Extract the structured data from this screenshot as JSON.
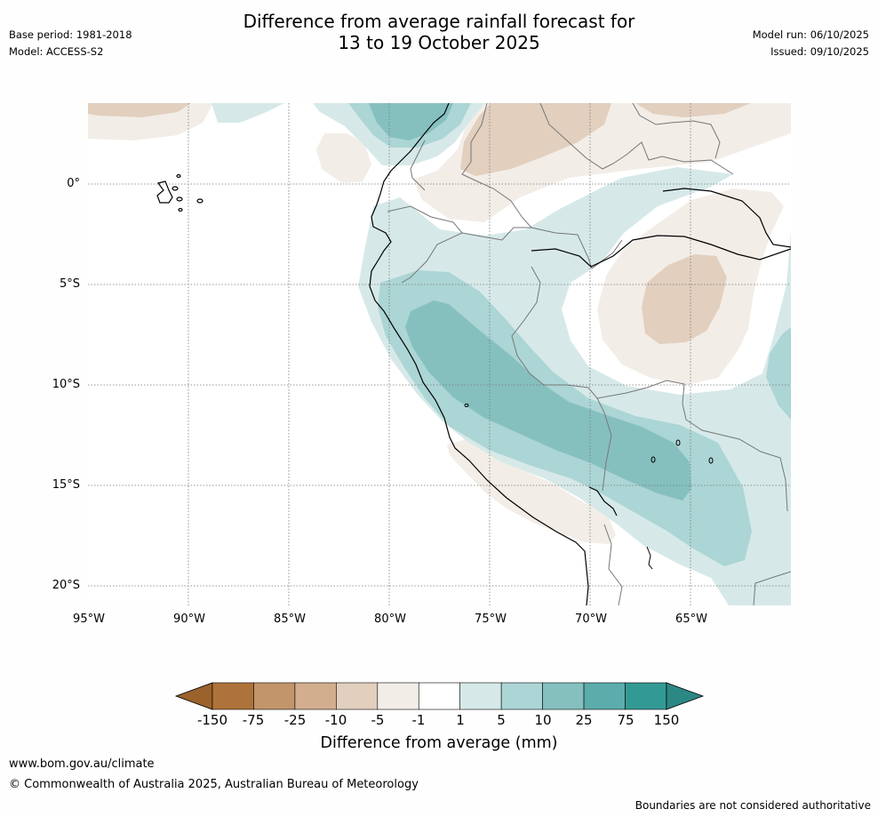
{
  "header": {
    "title_line1": "Difference from average rainfall forecast for",
    "title_line2": "13 to 19 October 2025",
    "base_period": "Base period: 1981-2018",
    "model": "Model: ACCESS-S2",
    "model_run": "Model run: 06/10/2025",
    "issued": "Issued: 09/10/2025"
  },
  "map": {
    "lat_labels": [
      "0°",
      "5°S",
      "10°S",
      "15°S",
      "20°S"
    ],
    "lon_labels": [
      "95°W",
      "90°W",
      "85°W",
      "80°W",
      "75°W",
      "70°W",
      "65°W"
    ]
  },
  "colorbar": {
    "title": "Difference from average (mm)",
    "ticks": [
      "-150",
      "-75",
      "-25",
      "-10",
      "-5",
      "-1",
      "1",
      "5",
      "10",
      "25",
      "75",
      "150"
    ],
    "colors": [
      "#ad733a",
      "#c2956a",
      "#d2ae8e",
      "#e2cfbe",
      "#f2ede7",
      "#ffffff",
      "#d6e9e8",
      "#acd5d5",
      "#85c0bf",
      "#5bacaa",
      "#339995"
    ],
    "under_color": "#9b622c",
    "over_color": "#2c8884"
  },
  "footer": {
    "website": "www.bom.gov.au/climate",
    "copyright": "© Commonwealth of Australia 2025, Australian Bureau of Meteorology",
    "disclaimer": "Boundaries are not considered authoritative"
  }
}
